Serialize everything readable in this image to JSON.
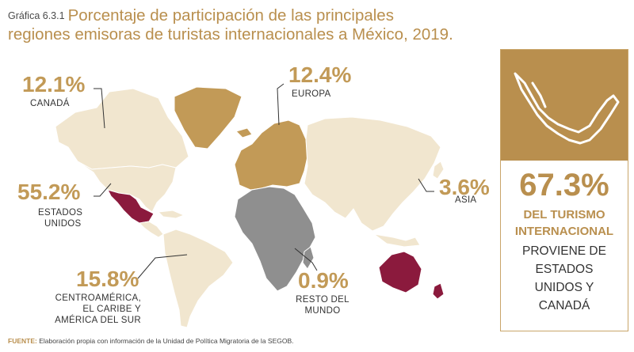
{
  "title": {
    "prefix": "Gráfica 6.3.1",
    "line1": "Porcentaje de participación de las principales",
    "line2": "regiones emisoras de turistas internacionales a México, 2019."
  },
  "chart_data": {
    "type": "map",
    "title": "Porcentaje de participación de las principales regiones emisoras de turistas internacionales a México, 2019.",
    "unit": "%",
    "regions": [
      {
        "name": "CANADÁ",
        "value": 12.1
      },
      {
        "name": "ESTADOS UNIDOS",
        "value": 55.2
      },
      {
        "name": "CENTROAMÉRICA, EL CARIBE Y AMÉRICA DEL SUR",
        "value": 15.8
      },
      {
        "name": "EUROPA",
        "value": 12.4
      },
      {
        "name": "ASIA",
        "value": 3.6
      },
      {
        "name": "RESTO DEL MUNDO",
        "value": 0.9
      }
    ]
  },
  "labels": {
    "canada": {
      "pct": "12.1%",
      "name": "CANADÁ"
    },
    "usa": {
      "pct": "55.2%",
      "name1": "ESTADOS",
      "name2": "UNIDOS"
    },
    "latam": {
      "pct": "15.8%",
      "name1": "CENTROAMÉRICA,",
      "name2": "EL CARIBE Y",
      "name3": "AMÉRICA DEL SUR"
    },
    "europe": {
      "pct": "12.4%",
      "name": "EUROPA"
    },
    "asia": {
      "pct": "3.6%",
      "name": "ASIA"
    },
    "rest": {
      "pct": "0.9%",
      "name1": "RESTO DEL",
      "name2": "MUNDO"
    }
  },
  "panel": {
    "pct": "67.3%",
    "bold1": "DEL TURISMO",
    "bold2": "INTERNACIONAL",
    "line1": "PROVIENE DE",
    "line2": "ESTADOS",
    "line3": "UNIDOS Y",
    "line4": "CANADÁ"
  },
  "source": {
    "label": "FUENTE:",
    "text": "Elaboración propia con información de la Unidad de Política Migratoria de la SEGOB."
  },
  "colors": {
    "gold": "#c29a57",
    "beige": "#f1e6cf",
    "gray": "#8f8f8f",
    "maroon": "#8b1a3d"
  }
}
